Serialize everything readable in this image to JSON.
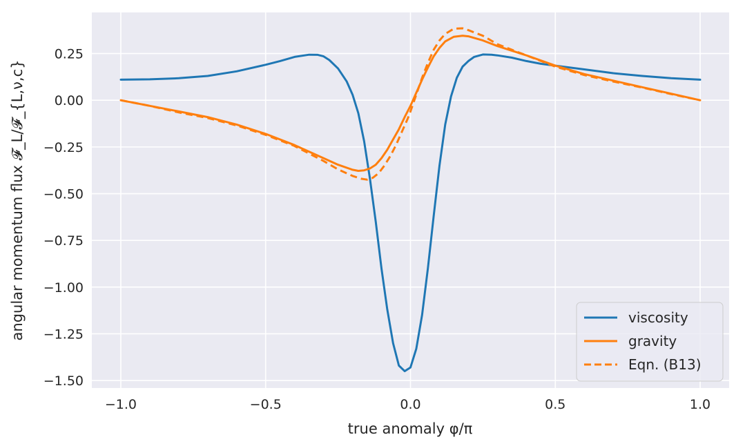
{
  "chart_data": {
    "type": "line",
    "title": "",
    "xlabel": "true anomaly φ/π",
    "ylabel": "angular momentum flux 𝓕_L/𝓕_{L,ν,c}",
    "xlim": [
      -1.1,
      1.1
    ],
    "ylim": [
      -1.54,
      0.47
    ],
    "xticks": [
      -1.0,
      -0.5,
      0.0,
      0.5,
      1.0
    ],
    "xtick_labels": [
      "−1.0",
      "−0.5",
      "0.0",
      "0.5",
      "1.0"
    ],
    "yticks": [
      0.25,
      0.0,
      -0.25,
      -0.5,
      -0.75,
      -1.0,
      -1.25,
      -1.5
    ],
    "ytick_labels": [
      "0.25",
      "0.00",
      "−0.25",
      "−0.50",
      "−0.75",
      "−1.00",
      "−1.25",
      "−1.50"
    ],
    "grid": true,
    "legend_position": "bottom-right",
    "colors": {
      "background": "#eaeaf2",
      "grid": "#ffffff",
      "blue": "#1f77b4",
      "orange": "#ff7f0e"
    },
    "series": [
      {
        "name": "viscosity",
        "style": "solid",
        "color": "#1f77b4",
        "x": [
          -1.0,
          -0.9,
          -0.8,
          -0.7,
          -0.6,
          -0.5,
          -0.45,
          -0.4,
          -0.35,
          -0.32,
          -0.3,
          -0.28,
          -0.25,
          -0.22,
          -0.2,
          -0.18,
          -0.16,
          -0.14,
          -0.12,
          -0.1,
          -0.08,
          -0.06,
          -0.04,
          -0.02,
          0.0,
          0.02,
          0.04,
          0.06,
          0.08,
          0.1,
          0.12,
          0.14,
          0.16,
          0.18,
          0.2,
          0.22,
          0.25,
          0.28,
          0.3,
          0.35,
          0.4,
          0.45,
          0.5,
          0.6,
          0.7,
          0.8,
          0.9,
          1.0
        ],
        "y": [
          0.11,
          0.112,
          0.118,
          0.13,
          0.155,
          0.19,
          0.21,
          0.232,
          0.244,
          0.243,
          0.235,
          0.215,
          0.17,
          0.1,
          0.03,
          -0.07,
          -0.22,
          -0.42,
          -0.65,
          -0.9,
          -1.12,
          -1.3,
          -1.42,
          -1.45,
          -1.43,
          -1.33,
          -1.15,
          -0.9,
          -0.62,
          -0.35,
          -0.13,
          0.02,
          0.12,
          0.18,
          0.21,
          0.232,
          0.245,
          0.244,
          0.24,
          0.228,
          0.21,
          0.195,
          0.185,
          0.165,
          0.145,
          0.13,
          0.118,
          0.11
        ]
      },
      {
        "name": "gravity",
        "style": "solid",
        "color": "#ff7f0e",
        "x": [
          -1.0,
          -0.9,
          -0.8,
          -0.7,
          -0.6,
          -0.5,
          -0.4,
          -0.3,
          -0.25,
          -0.2,
          -0.18,
          -0.16,
          -0.14,
          -0.12,
          -0.1,
          -0.08,
          -0.06,
          -0.04,
          -0.02,
          0.0,
          0.02,
          0.04,
          0.06,
          0.08,
          0.1,
          0.12,
          0.15,
          0.18,
          0.2,
          0.25,
          0.3,
          0.4,
          0.5,
          0.6,
          0.7,
          0.8,
          0.9,
          1.0
        ],
        "y": [
          0.0,
          -0.03,
          -0.06,
          -0.09,
          -0.13,
          -0.18,
          -0.24,
          -0.31,
          -0.345,
          -0.372,
          -0.378,
          -0.375,
          -0.365,
          -0.345,
          -0.31,
          -0.265,
          -0.21,
          -0.155,
          -0.09,
          -0.03,
          0.04,
          0.11,
          0.175,
          0.235,
          0.28,
          0.315,
          0.34,
          0.345,
          0.342,
          0.32,
          0.29,
          0.24,
          0.185,
          0.14,
          0.105,
          0.07,
          0.035,
          0.0
        ]
      },
      {
        "name": "Eqn. (B13)",
        "style": "dashed",
        "color": "#ff7f0e",
        "x": [
          -1.0,
          -0.9,
          -0.8,
          -0.7,
          -0.6,
          -0.5,
          -0.4,
          -0.3,
          -0.25,
          -0.2,
          -0.17,
          -0.15,
          -0.13,
          -0.11,
          -0.09,
          -0.07,
          -0.05,
          -0.03,
          -0.01,
          0.0,
          0.02,
          0.04,
          0.06,
          0.08,
          0.1,
          0.12,
          0.15,
          0.18,
          0.2,
          0.25,
          0.3,
          0.4,
          0.5,
          0.6,
          0.7,
          0.8,
          0.9,
          1.0
        ],
        "y": [
          0.0,
          -0.03,
          -0.065,
          -0.095,
          -0.135,
          -0.185,
          -0.245,
          -0.325,
          -0.37,
          -0.405,
          -0.42,
          -0.425,
          -0.415,
          -0.39,
          -0.35,
          -0.3,
          -0.24,
          -0.17,
          -0.1,
          -0.06,
          0.03,
          0.12,
          0.2,
          0.27,
          0.32,
          0.355,
          0.383,
          0.385,
          0.375,
          0.345,
          0.3,
          0.24,
          0.18,
          0.135,
          0.1,
          0.068,
          0.033,
          0.0
        ]
      }
    ]
  }
}
